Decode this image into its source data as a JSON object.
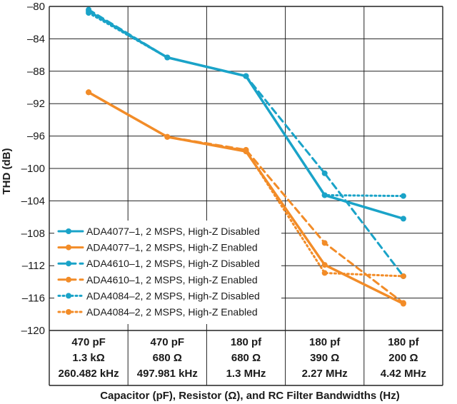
{
  "chart_data": {
    "type": "line",
    "xlabel": "Capacitor (pF), Resistor (Ω), and RC Filter Bandwidths (Hz)",
    "ylabel": "THD (dB)",
    "ylim": [
      -120,
      -80
    ],
    "yticks": [
      -80,
      -84,
      -88,
      -92,
      -96,
      -100,
      -104,
      -108,
      -112,
      -116,
      -120
    ],
    "grid": true,
    "legend_position": "bottom-left",
    "categories": [
      [
        "470 pF",
        "1.3 kΩ",
        "260.482 kHz"
      ],
      [
        "470 pF",
        "680 Ω",
        "497.981 kHz"
      ],
      [
        "180 pf",
        "680 Ω",
        "1.3 MHz"
      ],
      [
        "180 pf",
        "390 Ω",
        "2.27 MHz"
      ],
      [
        "180 pf",
        "200 Ω",
        "4.42 MHz"
      ]
    ],
    "series": [
      {
        "name": "ADA4077–1, 2 MSPS, High-Z Disabled",
        "color": "#1aa3c8",
        "style": "solid",
        "values": [
          -80.6,
          -86.3,
          -88.6,
          -103.3,
          -106.2
        ]
      },
      {
        "name": "ADA4077–1, 2 MSPS, High-Z Enabled",
        "color": "#f28c28",
        "style": "solid",
        "values": [
          -90.6,
          -96.1,
          -97.9,
          -111.9,
          -116.7
        ]
      },
      {
        "name": "ADA4610–1, 2 MSPS, High-Z Disabled",
        "color": "#1aa3c8",
        "style": "dashed",
        "values": [
          -80.4,
          -86.3,
          -88.6,
          -100.6,
          -113.3
        ]
      },
      {
        "name": "ADA4610–1, 2 MSPS, High-Z Enabled",
        "color": "#f28c28",
        "style": "dashed",
        "values": [
          -90.6,
          -96.1,
          -97.7,
          -109.2,
          -116.6
        ]
      },
      {
        "name": "ADA4084–2, 2 MSPS, High-Z Disabled",
        "color": "#1aa3c8",
        "style": "dotted",
        "values": [
          -80.8,
          -86.3,
          -88.6,
          -103.3,
          -103.4
        ]
      },
      {
        "name": "ADA4084–2, 2 MSPS, High-Z Enabled",
        "color": "#f28c28",
        "style": "dotted",
        "values": [
          -90.6,
          -96.1,
          -97.8,
          -112.9,
          -113.3
        ]
      }
    ]
  }
}
